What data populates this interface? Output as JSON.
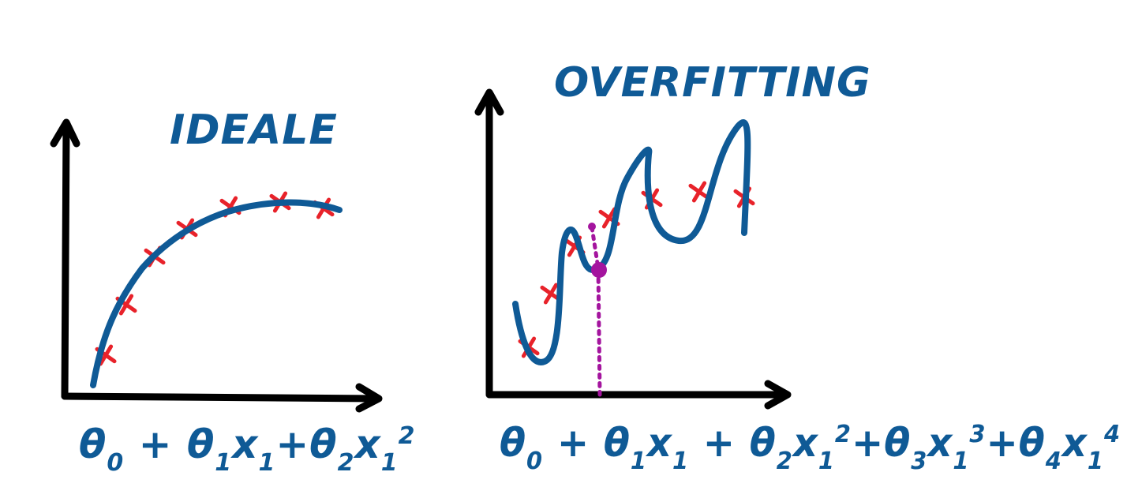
{
  "colors": {
    "ink": "#0f5a96",
    "axis": "#000000",
    "cross": "#e8222a",
    "marker": "#a4149e"
  },
  "ideal": {
    "title": "IDEALE",
    "formula": [
      {
        "t": "θ"
      },
      {
        "s": "0"
      },
      {
        "t": " + θ"
      },
      {
        "s": "1"
      },
      {
        "t": "x"
      },
      {
        "s": "1"
      },
      {
        "t": "+θ"
      },
      {
        "s": "2"
      },
      {
        "t": "x"
      },
      {
        "s": "1"
      },
      {
        "p": "2"
      }
    ]
  },
  "overfit": {
    "title": "OVERFITTING",
    "formula": [
      {
        "t": "θ"
      },
      {
        "s": "0"
      },
      {
        "t": " + θ"
      },
      {
        "s": "1"
      },
      {
        "t": "x"
      },
      {
        "s": "1"
      },
      {
        "t": " + θ"
      },
      {
        "s": "2"
      },
      {
        "t": "x"
      },
      {
        "s": "1"
      },
      {
        "p": "2"
      },
      {
        "t": "+θ"
      },
      {
        "s": "3"
      },
      {
        "t": "x"
      },
      {
        "s": "1"
      },
      {
        "p": "3"
      },
      {
        "t": "+θ"
      },
      {
        "s": "4"
      },
      {
        "t": "x"
      },
      {
        "s": "1"
      },
      {
        "p": "4"
      }
    ]
  },
  "icons": {
    "axes": "arrow-axes-icon",
    "data_point": "cross-mark-icon",
    "error_marker": "dotted-error-line-icon"
  }
}
